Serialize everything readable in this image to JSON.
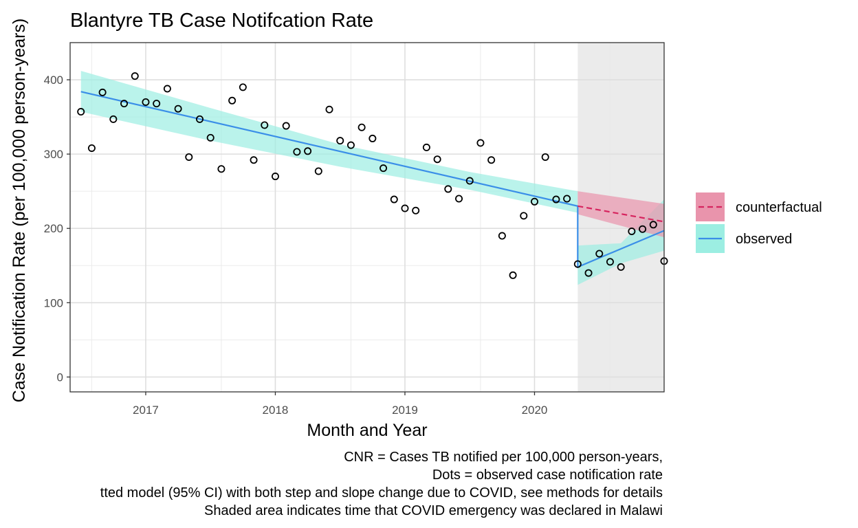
{
  "chart_data": {
    "type": "scatter",
    "title": "Blantyre TB Case Notifcation Rate",
    "xlabel": "Month and Year",
    "ylabel": "Case Notification Rate (per 100,000 person-years)",
    "ylim": [
      -20,
      450
    ],
    "xlim": [
      "2016-05",
      "2020-12"
    ],
    "yticks": [
      0,
      100,
      200,
      300,
      400
    ],
    "xticks": [
      "2017",
      "2018",
      "2019",
      "2020"
    ],
    "grid": true,
    "legend_position": "right",
    "shaded_region": {
      "start": "2020-04",
      "end": "2020-12",
      "color": "#ebebeb"
    },
    "colors": {
      "counterfactual": "#d6245e",
      "counterfactual_band": "#e994ac",
      "observed": "#3a8ee8",
      "observed_band": "#9ceee2"
    },
    "legend": [
      {
        "key": "counterfactual",
        "label": "counterfactual",
        "line": "dashed"
      },
      {
        "key": "observed",
        "label": "observed",
        "line": "solid"
      }
    ],
    "points": {
      "x": [
        "2016-06",
        "2016-07",
        "2016-08",
        "2016-09",
        "2016-10",
        "2016-11",
        "2016-12",
        "2017-01",
        "2017-02",
        "2017-03",
        "2017-04",
        "2017-05",
        "2017-06",
        "2017-07",
        "2017-08",
        "2017-09",
        "2017-10",
        "2017-11",
        "2017-12",
        "2018-01",
        "2018-02",
        "2018-03",
        "2018-04",
        "2018-05",
        "2018-06",
        "2018-07",
        "2018-08",
        "2018-09",
        "2018-10",
        "2018-11",
        "2018-12",
        "2019-01",
        "2019-02",
        "2019-03",
        "2019-04",
        "2019-05",
        "2019-06",
        "2019-07",
        "2019-08",
        "2019-09",
        "2019-10",
        "2019-11",
        "2019-12",
        "2020-01",
        "2020-02",
        "2020-03",
        "2020-04",
        "2020-05",
        "2020-06",
        "2020-07",
        "2020-08",
        "2020-09",
        "2020-10",
        "2020-11",
        "2020-12"
      ],
      "y": [
        357,
        308,
        383,
        347,
        368,
        405,
        370,
        368,
        388,
        361,
        296,
        347,
        322,
        280,
        372,
        390,
        292,
        339,
        270,
        338,
        303,
        304,
        277,
        360,
        318,
        312,
        336,
        321,
        281,
        239,
        227,
        224,
        309,
        293,
        253,
        240,
        264,
        315,
        292,
        190,
        137,
        217,
        236,
        296,
        239,
        240,
        152,
        140,
        166,
        155,
        148,
        196,
        199,
        205,
        156
      ]
    },
    "series": [
      {
        "name": "observed",
        "x": [
          "2016-06",
          "2020-04",
          "2020-04",
          "2020-12"
        ],
        "y": [
          384,
          230,
          148,
          197
        ]
      },
      {
        "name": "counterfactual",
        "x": [
          "2020-04",
          "2020-12"
        ],
        "y": [
          230,
          209
        ]
      }
    ],
    "bands": [
      {
        "name": "observed",
        "x": [
          "2016-06",
          "2017-06",
          "2018-06",
          "2019-06",
          "2020-04"
        ],
        "lower": [
          357,
          318,
          283,
          252,
          221
        ],
        "upper": [
          412,
          362,
          313,
          276,
          250
        ]
      },
      {
        "name": "observed",
        "x": [
          "2020-04",
          "2020-08",
          "2020-12"
        ],
        "lower": [
          124,
          153,
          170
        ],
        "upper": [
          177,
          180,
          239
        ]
      },
      {
        "name": "counterfactual",
        "x": [
          "2020-04",
          "2020-12"
        ],
        "lower": [
          219,
          188
        ],
        "upper": [
          250,
          233
        ]
      }
    ]
  },
  "captions": [
    "CNR = Cases TB notified per 100,000 person-years,",
    "Dots = observed case notification rate",
    "tted model (95% CI) with both step and slope change due to COVID, see methods for details",
    "Shaded area indicates time that COVID emergency was declared in Malawi"
  ]
}
